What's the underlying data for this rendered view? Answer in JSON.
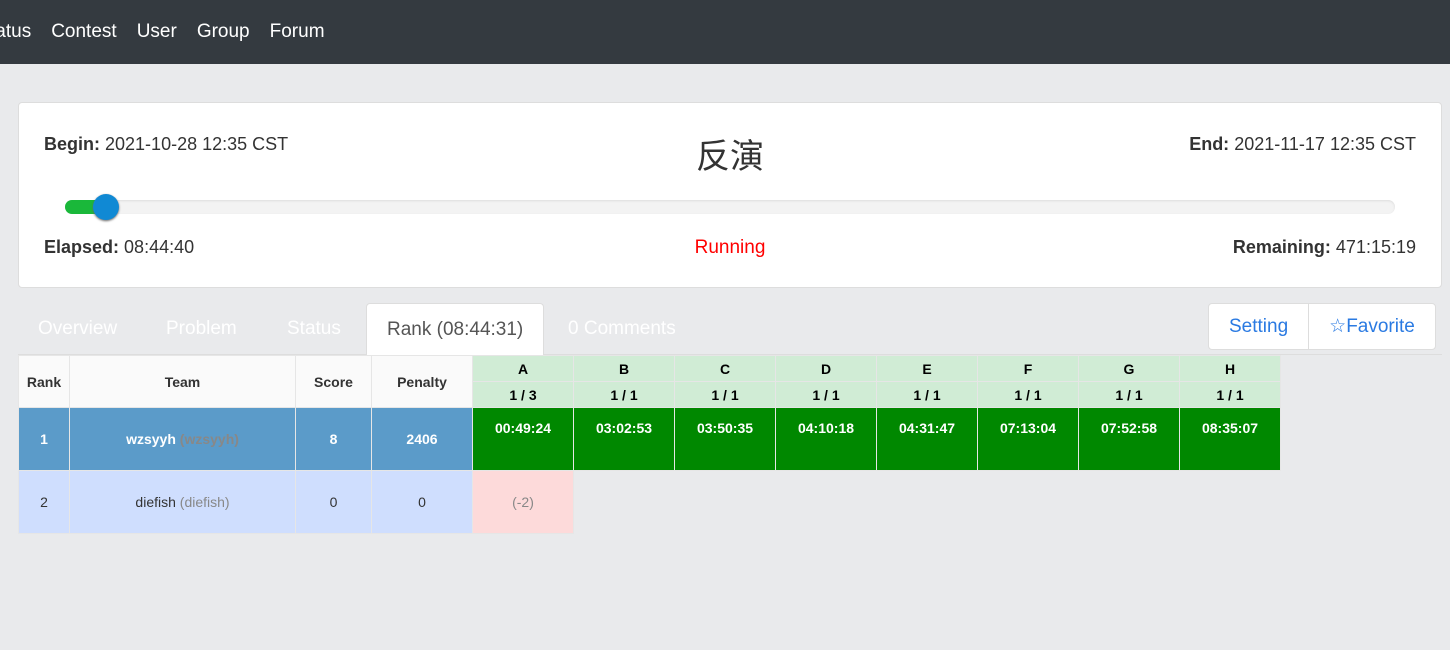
{
  "nav": [
    "tatus",
    "Contest",
    "User",
    "Group",
    "Forum"
  ],
  "contest": {
    "title": "反演",
    "begin_label": "Begin:",
    "begin": "2021-10-28 12:35 CST",
    "end_label": "End:",
    "end": "2021-11-17 12:35 CST",
    "elapsed_label": "Elapsed:",
    "elapsed": "08:44:40",
    "remaining_label": "Remaining:",
    "remaining": "471:15:19",
    "status": "Running",
    "progress_percent": 1.8
  },
  "tabs": [
    "Overview",
    "Problem",
    "Status",
    "Rank (08:44:31)",
    "0 Comments"
  ],
  "actions": {
    "setting": "Setting",
    "favorite": "☆Favorite"
  },
  "rank": {
    "headers": [
      "Rank",
      "Team",
      "Score",
      "Penalty"
    ],
    "problems": [
      {
        "id": "A",
        "ratio": "1 / 3"
      },
      {
        "id": "B",
        "ratio": "1 / 1"
      },
      {
        "id": "C",
        "ratio": "1 / 1"
      },
      {
        "id": "D",
        "ratio": "1 / 1"
      },
      {
        "id": "E",
        "ratio": "1 / 1"
      },
      {
        "id": "F",
        "ratio": "1 / 1"
      },
      {
        "id": "G",
        "ratio": "1 / 1"
      },
      {
        "id": "H",
        "ratio": "1 / 1"
      }
    ],
    "rows": [
      {
        "rank": "1",
        "team": "wzsyyh",
        "user": "(wzsyyh)",
        "score": "8",
        "penalty": "2406",
        "cells": [
          "00:49:24",
          "03:02:53",
          "03:50:35",
          "04:10:18",
          "04:31:47",
          "07:13:04",
          "07:52:58",
          "08:35:07"
        ]
      },
      {
        "rank": "2",
        "team": "diefish",
        "user": "(diefish)",
        "score": "0",
        "penalty": "0",
        "cells": [
          "(-2)",
          "",
          "",
          "",
          "",
          "",
          "",
          ""
        ]
      }
    ]
  }
}
